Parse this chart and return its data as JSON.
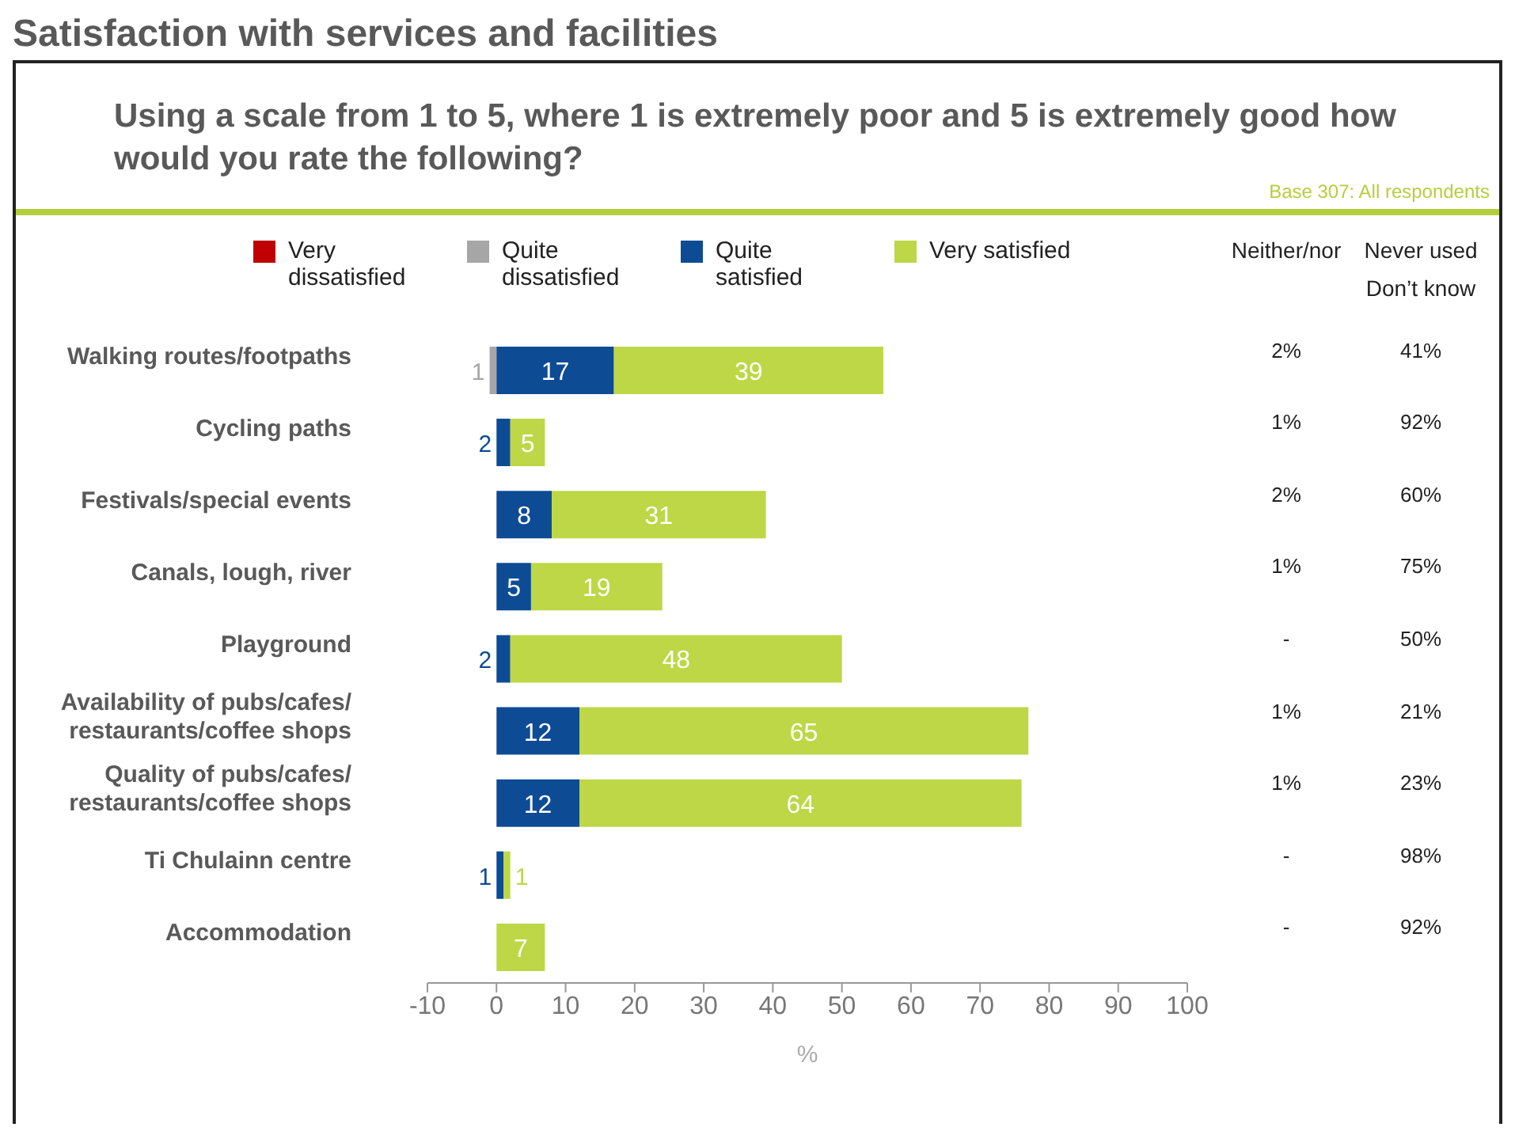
{
  "chart_data": {
    "type": "bar",
    "orientation": "horizontal",
    "stacked": true,
    "title": "Satisfaction with services and facilities",
    "subtitle": "Using a scale from 1 to 5, where 1 is extremely poor and 5 is extremely good how would you rate the following?",
    "xlabel": "%",
    "categories": [
      "Walking routes/footpaths",
      "Cycling paths",
      "Festivals/special events",
      "Canals, lough, river",
      "Playground",
      "Availability of pubs/cafes/ restaurants/coffee shops",
      "Quality of pubs/cafes/ restaurants/coffee shops",
      "Ti Chulainn centre",
      "Accommodation"
    ],
    "series": [
      {
        "name": "Very dissatisfied",
        "color": "#c00000",
        "values": [
          null,
          null,
          null,
          null,
          null,
          null,
          null,
          null,
          null
        ],
        "value_labels": [
          null,
          null,
          null,
          null,
          null,
          null,
          null,
          null,
          null
        ]
      },
      {
        "name": "Quite dissatisfied",
        "color": "#a6a6a6",
        "values": [
          1,
          null,
          null,
          null,
          null,
          null,
          null,
          null,
          null
        ],
        "base": [
          -1,
          null,
          null,
          null,
          null,
          null,
          null,
          null,
          null
        ],
        "value_labels": [
          "1",
          null,
          null,
          null,
          null,
          null,
          null,
          null,
          null
        ]
      },
      {
        "name": "Quite satisfied",
        "color": "#0d4c94",
        "values": [
          17,
          2,
          8,
          5,
          2,
          12,
          12,
          1,
          null
        ],
        "value_labels": [
          "17",
          "2",
          "8",
          "5",
          "2",
          "12",
          "12",
          "1",
          null
        ]
      },
      {
        "name": "Very satisfied",
        "color": "#bdd746",
        "values": [
          39,
          5,
          31,
          19,
          48,
          65,
          64,
          1,
          7
        ],
        "value_labels": [
          "39",
          "5",
          "31",
          "19",
          "48",
          "65",
          "64",
          "1",
          "7"
        ]
      }
    ],
    "xlim": [
      -10,
      100
    ],
    "xticks": [
      -10,
      0,
      10,
      20,
      30,
      40,
      50,
      60,
      70,
      80,
      90,
      100
    ],
    "legend": "top",
    "annotations": [
      "Base 307: All respondents",
      "Neither/nor",
      "Never used\nDon’t know",
      "2%",
      "41%",
      "1%",
      "92%",
      "2%",
      "60%",
      "1%",
      "75%",
      "-",
      "50%",
      "1%",
      "21%",
      "1%",
      "23%",
      "-",
      "98%",
      "-",
      "92%"
    ]
  }
}
